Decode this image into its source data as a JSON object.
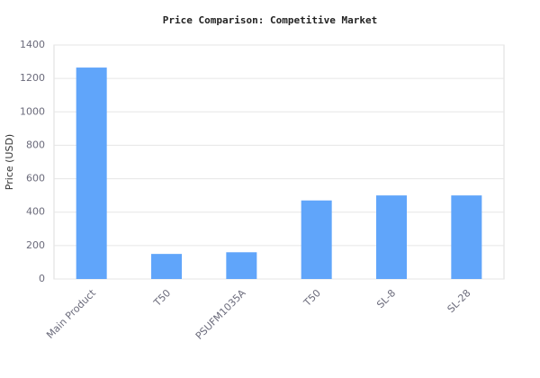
{
  "chart_data": {
    "type": "bar",
    "title": "Price Comparison: Competitive Market",
    "y_label": "Price (USD)",
    "categories": [
      "Main Product",
      "T50",
      "PSUFM1035A",
      "T50",
      "SL-8",
      "SL-28"
    ],
    "values": [
      1265,
      150,
      160,
      470,
      500,
      500
    ],
    "color": "#60a5fa",
    "ylim": [
      0,
      1400
    ],
    "yticks": [
      0,
      200,
      400,
      600,
      800,
      1000,
      1200,
      1400
    ],
    "grid": true
  }
}
